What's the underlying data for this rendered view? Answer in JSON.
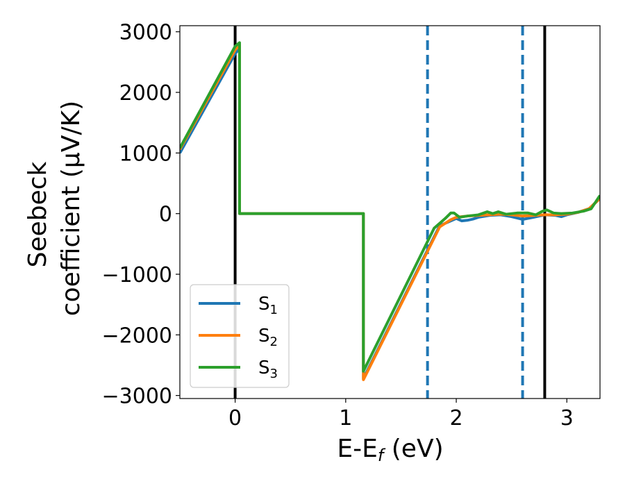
{
  "chart_data": {
    "type": "line",
    "xlabel_main": "E-E",
    "xlabel_sub": "f",
    "xlabel_unit": " (eV)",
    "ylabel_line1": "Seebeck",
    "ylabel_line2": "coefficient  (μV/K)",
    "xlim": [
      -0.5,
      3.3
    ],
    "ylim": [
      -3050,
      3100
    ],
    "x_ticks": [
      0,
      1,
      2,
      3
    ],
    "x_tick_labels": [
      "0",
      "1",
      "2",
      "3"
    ],
    "y_ticks": [
      3000,
      2000,
      1000,
      0,
      -1000,
      -2000,
      -3000
    ],
    "y_tick_labels": [
      "3000",
      "2000",
      "1000",
      "0",
      "−1000",
      "−2000",
      "−3000"
    ],
    "vertical_lines": [
      {
        "x": 0.0,
        "style": "solid",
        "color": "#000000"
      },
      {
        "x": 1.74,
        "style": "dashed",
        "color": "#1f77b4"
      },
      {
        "x": 2.6,
        "style": "dashed",
        "color": "#1f77b4"
      },
      {
        "x": 2.8,
        "style": "solid",
        "color": "#000000"
      }
    ],
    "legend_position": "lower-left",
    "series": [
      {
        "name": "S",
        "sub": "1",
        "color": "#1f77b4",
        "points": [
          [
            -0.5,
            1000
          ],
          [
            0.0,
            2640
          ],
          [
            0.04,
            2720
          ],
          [
            0.04,
            0
          ],
          [
            1.16,
            0
          ],
          [
            1.16,
            -2720
          ],
          [
            1.85,
            -200
          ],
          [
            2.0,
            -80
          ],
          [
            2.05,
            -120
          ],
          [
            2.1,
            -110
          ],
          [
            2.15,
            -90
          ],
          [
            2.2,
            -60
          ],
          [
            2.3,
            -30
          ],
          [
            2.4,
            -20
          ],
          [
            2.5,
            -50
          ],
          [
            2.6,
            -95
          ],
          [
            2.7,
            -60
          ],
          [
            2.8,
            -20
          ],
          [
            2.9,
            -30
          ],
          [
            2.95,
            -50
          ],
          [
            3.0,
            -20
          ],
          [
            3.1,
            20
          ],
          [
            3.2,
            80
          ],
          [
            3.3,
            250
          ]
        ]
      },
      {
        "name": "S",
        "sub": "2",
        "color": "#ff7f0e",
        "points": [
          [
            -0.5,
            1060
          ],
          [
            0.0,
            2700
          ],
          [
            0.04,
            2780
          ],
          [
            0.04,
            0
          ],
          [
            1.16,
            0
          ],
          [
            1.16,
            -2740
          ],
          [
            1.85,
            -220
          ],
          [
            1.95,
            -100
          ],
          [
            2.0,
            -60
          ],
          [
            2.1,
            -40
          ],
          [
            2.2,
            -30
          ],
          [
            2.3,
            -20
          ],
          [
            2.4,
            -10
          ],
          [
            2.5,
            -20
          ],
          [
            2.6,
            -40
          ],
          [
            2.7,
            -30
          ],
          [
            2.8,
            -20
          ],
          [
            2.9,
            -20
          ],
          [
            3.0,
            -10
          ],
          [
            3.1,
            20
          ],
          [
            3.2,
            80
          ],
          [
            3.3,
            250
          ]
        ]
      },
      {
        "name": "S",
        "sub": "3",
        "color": "#2ca02c",
        "points": [
          [
            -0.5,
            1080
          ],
          [
            0.0,
            2760
          ],
          [
            0.04,
            2820
          ],
          [
            0.04,
            0
          ],
          [
            1.16,
            0
          ],
          [
            1.16,
            -2600
          ],
          [
            1.8,
            -240
          ],
          [
            1.9,
            -80
          ],
          [
            1.95,
            10
          ],
          [
            1.98,
            10
          ],
          [
            2.03,
            -60
          ],
          [
            2.1,
            -40
          ],
          [
            2.2,
            -20
          ],
          [
            2.28,
            30
          ],
          [
            2.33,
            0
          ],
          [
            2.38,
            30
          ],
          [
            2.45,
            -10
          ],
          [
            2.55,
            10
          ],
          [
            2.65,
            10
          ],
          [
            2.72,
            -20
          ],
          [
            2.78,
            40
          ],
          [
            2.82,
            60
          ],
          [
            2.88,
            10
          ],
          [
            2.95,
            0
          ],
          [
            3.05,
            10
          ],
          [
            3.15,
            40
          ],
          [
            3.22,
            80
          ],
          [
            3.3,
            300
          ]
        ]
      }
    ]
  }
}
